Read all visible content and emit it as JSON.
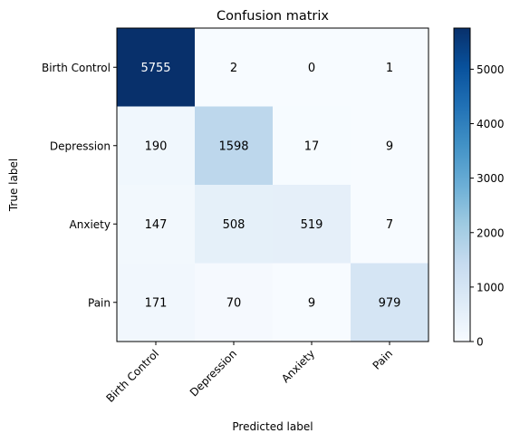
{
  "chart_data": {
    "type": "heatmap",
    "title": "Confusion matrix",
    "xlabel": "Predicted label",
    "ylabel": "True label",
    "x_categories": [
      "Birth Control",
      "Depression",
      "Anxiety",
      "Pain"
    ],
    "y_categories": [
      "Birth Control",
      "Depression",
      "Anxiety",
      "Pain"
    ],
    "values": [
      [
        5755,
        2,
        0,
        1
      ],
      [
        190,
        1598,
        17,
        9
      ],
      [
        147,
        508,
        519,
        7
      ],
      [
        171,
        70,
        9,
        979
      ]
    ],
    "colormap": "Blues",
    "colorbar": {
      "range": [
        0,
        5755
      ],
      "ticks": [
        0,
        1000,
        2000,
        3000,
        4000,
        5000
      ]
    }
  }
}
